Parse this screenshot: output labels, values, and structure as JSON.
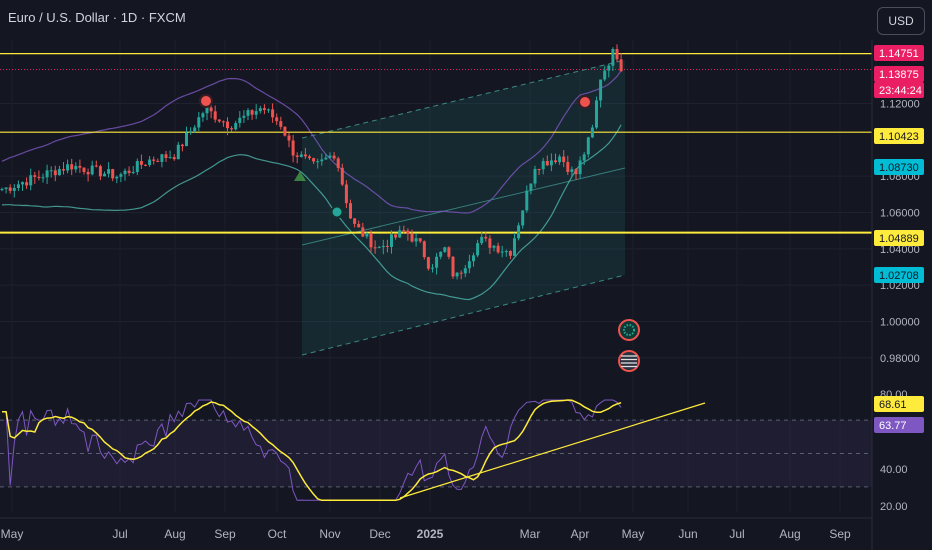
{
  "header": {
    "title": "Euro / U.S. Dollar · 1D · FXCM",
    "currency_button": "USD"
  },
  "price_axis": {
    "ticks": [
      "1.12000",
      "1.08000",
      "1.06000",
      "1.04000",
      "1.02000",
      "1.00000",
      "0.98000"
    ],
    "labels": [
      {
        "text": "1.14751",
        "color": "#e91e63",
        "text_color": "#ffffff"
      },
      {
        "text": "1.13875",
        "color": "#e91e63",
        "text_color": "#ffffff"
      },
      {
        "text": "23:44:24",
        "color": "#e91e63",
        "text_color": "#ffffff"
      },
      {
        "text": "1.10423",
        "color": "#ffeb3b",
        "text_color": "#131722"
      },
      {
        "text": "1.08730",
        "color": "#00bcd4",
        "text_color": "#131722"
      },
      {
        "text": "1.04889",
        "color": "#ffeb3b",
        "text_color": "#131722"
      },
      {
        "text": "1.02708",
        "color": "#00bcd4",
        "text_color": "#131722"
      }
    ]
  },
  "rsi_axis": {
    "ticks": [
      "80.00",
      "40.00",
      "20.00"
    ],
    "labels": [
      {
        "text": "68.61",
        "color": "#ffeb3b",
        "text_color": "#131722"
      },
      {
        "text": "63.77",
        "color": "#7e57c2",
        "text_color": "#ffffff"
      }
    ]
  },
  "time_axis": {
    "labels": [
      "May",
      "Jul",
      "Aug",
      "Sep",
      "Oct",
      "Nov",
      "Dec",
      "2025",
      "Mar",
      "Apr",
      "May",
      "Jun",
      "Jul",
      "Aug",
      "Sep"
    ]
  },
  "chart_data": {
    "type": "candlestick",
    "symbol": "EURUSD",
    "interval": "1D",
    "source": "FXCM",
    "y_range": [
      0.965,
      1.155
    ],
    "horizontal_levels": [
      1.14751,
      1.10423,
      1.04889
    ],
    "current_price": 1.13875,
    "countdown": "23:44:24",
    "colors": {
      "up": "#26a69a",
      "down": "#ef5350",
      "level_line": "#ffeb3b",
      "current_price_line": "#e91e63",
      "channel": "#4db6ac",
      "bands": "#7e57c2"
    },
    "anchors": [
      [
        "May",
        1.073
      ],
      [
        "Jun",
        1.086
      ],
      [
        "Jul",
        1.08
      ],
      [
        "Jul",
        1.089
      ],
      [
        "Aug",
        1.092
      ],
      [
        "Aug",
        1.117
      ],
      [
        "Sep",
        1.108
      ],
      [
        "Sep",
        1.118
      ],
      [
        "Oct",
        1.108
      ],
      [
        "Oct",
        1.094
      ],
      [
        "Nov",
        1.085
      ],
      [
        "Nov",
        1.093
      ],
      [
        "Nov",
        1.054
      ],
      [
        "Dec",
        1.04
      ],
      [
        "Dec",
        1.05
      ],
      [
        "Dec",
        1.042
      ],
      [
        "2025",
        1.03
      ],
      [
        "2025",
        1.04
      ],
      [
        "Jan",
        1.023
      ],
      [
        "Feb",
        1.045
      ],
      [
        "Feb",
        1.038
      ],
      [
        "Mar",
        1.086
      ],
      [
        "Mar",
        1.091
      ],
      [
        "Mar",
        1.08
      ],
      [
        "Apr",
        1.104
      ],
      [
        "Apr",
        1.134
      ],
      [
        "Apr",
        1.15
      ],
      [
        "Apr",
        1.139
      ]
    ],
    "rsi": {
      "levels": [
        70,
        50,
        30
      ],
      "y_range": [
        15,
        85
      ],
      "rsi_last": 63.77,
      "signal_last": 68.61
    }
  }
}
